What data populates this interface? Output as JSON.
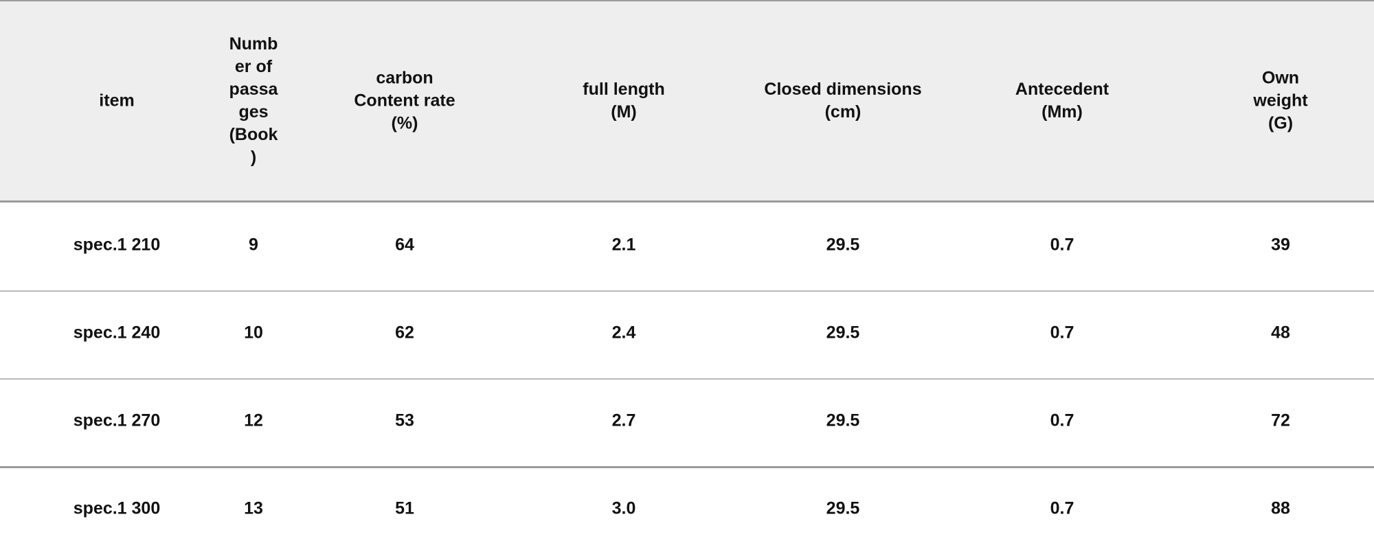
{
  "table": {
    "headers": [
      "item",
      "Numb\ner of\npassa\nges\n(Book\n)",
      "carbon\nContent rate\n(%)",
      "full length\n(M)",
      "Closed dimensions\n(cm)",
      "Antecedent\n(Mm)",
      "Own weight\n(G)"
    ],
    "rows": [
      [
        "spec.1 210",
        "9",
        "64",
        "2.1",
        "29.5",
        "0.7",
        "39"
      ],
      [
        "spec.1 240",
        "10",
        "62",
        "2.4",
        "29.5",
        "0.7",
        "48"
      ],
      [
        "spec.1 270",
        "12",
        "53",
        "2.7",
        "29.5",
        "0.7",
        "72"
      ],
      [
        "spec.1 300",
        "13",
        "51",
        "3.0",
        "29.5",
        "0.7",
        "88"
      ]
    ]
  }
}
